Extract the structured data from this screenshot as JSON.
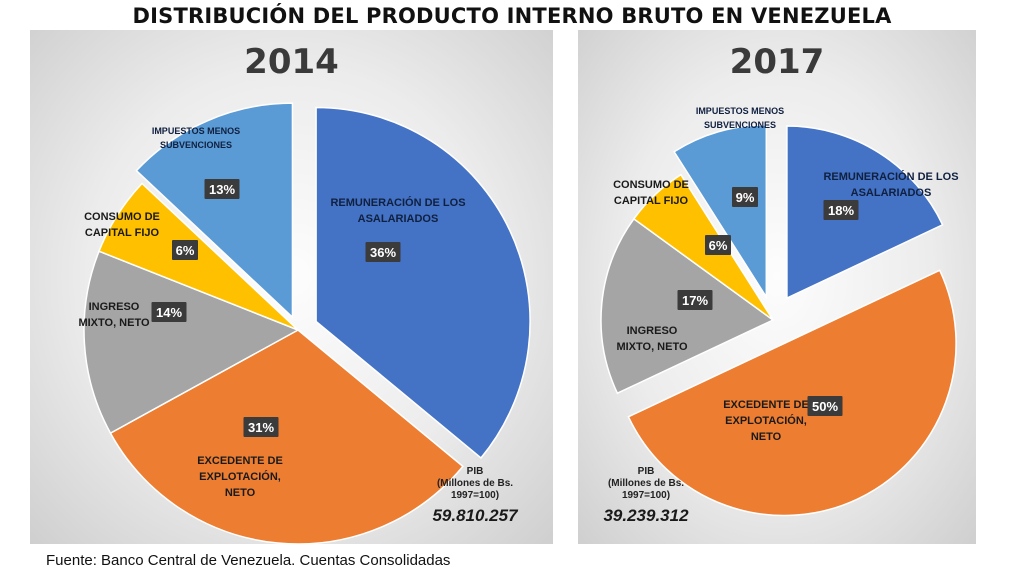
{
  "title": "DISTRIBUCIÓN DEL PRODUCTO INTERNO BRUTO EN VENEZUELA",
  "source": "Fuente: Banco Central de Venezuela. Cuentas Consolidadas",
  "chart_data": [
    {
      "type": "pie",
      "title": "2014",
      "pib_label": [
        "PIB",
        "(Millones de Bs.",
        "1997=100)"
      ],
      "pib_value": "59.810.257",
      "slices": [
        {
          "name": [
            "REMUNERACIÓN DE LOS",
            "ASALARIADOS"
          ],
          "value": 36,
          "label": "36%",
          "color": "#4472C4"
        },
        {
          "name": [
            "EXCEDENTE DE",
            "EXPLOTACIÓN,",
            "NETO"
          ],
          "value": 31,
          "label": "31%",
          "color": "#ED7D31"
        },
        {
          "name": [
            "INGRESO",
            "MIXTO, NETO"
          ],
          "value": 14,
          "label": "14%",
          "color": "#A5A5A5"
        },
        {
          "name": [
            "CONSUMO DE",
            "CAPITAL FIJO"
          ],
          "value": 6,
          "label": "6%",
          "color": "#FFC000"
        },
        {
          "name": [
            "IMPUESTOS MENOS",
            "SUBVENCIONES"
          ],
          "value": 13,
          "label": "13%",
          "color": "#5B9BD5"
        }
      ]
    },
    {
      "type": "pie",
      "title": "2017",
      "pib_label": [
        "PIB",
        "(Millones de Bs.",
        "1997=100)"
      ],
      "pib_value": "39.239.312",
      "slices": [
        {
          "name": [
            "REMUNERACIÓN DE LOS",
            "ASALARIADOS"
          ],
          "value": 18,
          "label": "18%",
          "color": "#4472C4"
        },
        {
          "name": [
            "EXCEDENTE DE",
            "EXPLOTACIÓN,",
            "NETO"
          ],
          "value": 50,
          "label": "50%",
          "color": "#ED7D31"
        },
        {
          "name": [
            "INGRESO",
            "MIXTO, NETO"
          ],
          "value": 17,
          "label": "17%",
          "color": "#A5A5A5"
        },
        {
          "name": [
            "CONSUMO DE",
            "CAPITAL FIJO"
          ],
          "value": 6,
          "label": "6%",
          "color": "#FFC000"
        },
        {
          "name": [
            "IMPUESTOS MENOS",
            "SUBVENCIONES"
          ],
          "value": 9,
          "label": "9%",
          "color": "#5B9BD5"
        }
      ]
    }
  ]
}
